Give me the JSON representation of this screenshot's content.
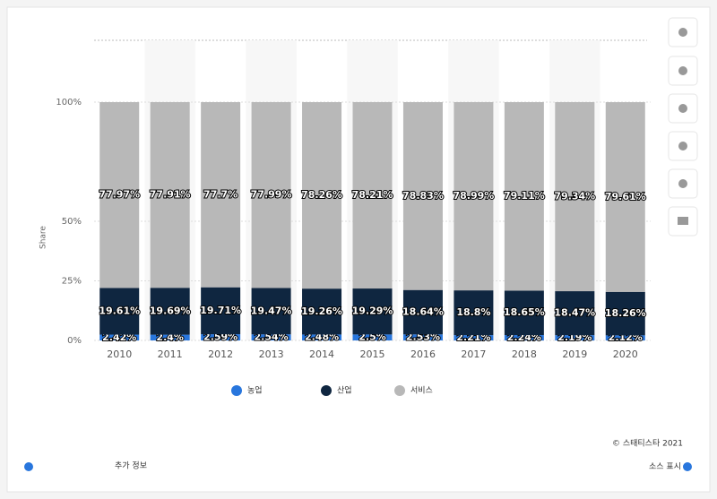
{
  "chart_data": {
    "type": "stacked_bar",
    "y_label": "Share",
    "categories": [
      "2010",
      "2011",
      "2012",
      "2013",
      "2014",
      "2015",
      "2016",
      "2017",
      "2018",
      "2019",
      "2020"
    ],
    "series": [
      {
        "name": "농업",
        "color": "#2876dd",
        "values": [
          2.42,
          2.4,
          2.59,
          2.54,
          2.48,
          2.5,
          2.53,
          2.21,
          2.24,
          2.19,
          2.12
        ],
        "value_labels": [
          "2.42%",
          "2.4%",
          "2.59%",
          "2.54%",
          "2.48%",
          "2.5%",
          "2.53%",
          "2.21%",
          "2.24%",
          "2.19%",
          "2.12%"
        ]
      },
      {
        "name": "산업",
        "color": "#0f2640",
        "values": [
          19.61,
          19.69,
          19.71,
          19.47,
          19.26,
          19.29,
          18.64,
          18.8,
          18.65,
          18.47,
          18.26
        ],
        "value_labels": [
          "19.61%",
          "19.69%",
          "19.71%",
          "19.47%",
          "19.26%",
          "19.29%",
          "18.64%",
          "18.8%",
          "18.65%",
          "18.47%",
          "18.26%"
        ]
      },
      {
        "name": "서비스",
        "color": "#b8b8b8",
        "values": [
          77.97,
          77.91,
          77.7,
          77.99,
          78.26,
          78.21,
          78.83,
          78.99,
          79.11,
          79.34,
          79.61
        ],
        "value_labels": [
          "77.97%",
          "77.91%",
          "77.7%",
          "77.99%",
          "78.26%",
          "78.21%",
          "78.83%",
          "78.99%",
          "79.11%",
          "79.34%",
          "79.61%"
        ]
      }
    ],
    "ylim": [
      0,
      100
    ],
    "yticks": [
      {
        "value": 0,
        "label": "0%"
      },
      {
        "value": 25,
        "label": "25%"
      },
      {
        "value": 50,
        "label": "50%"
      },
      {
        "value": 100,
        "label": "100%"
      }
    ],
    "credit": "© 스태티스타 2021",
    "more_info": "추가 정보",
    "source_link": "소스 표시"
  }
}
